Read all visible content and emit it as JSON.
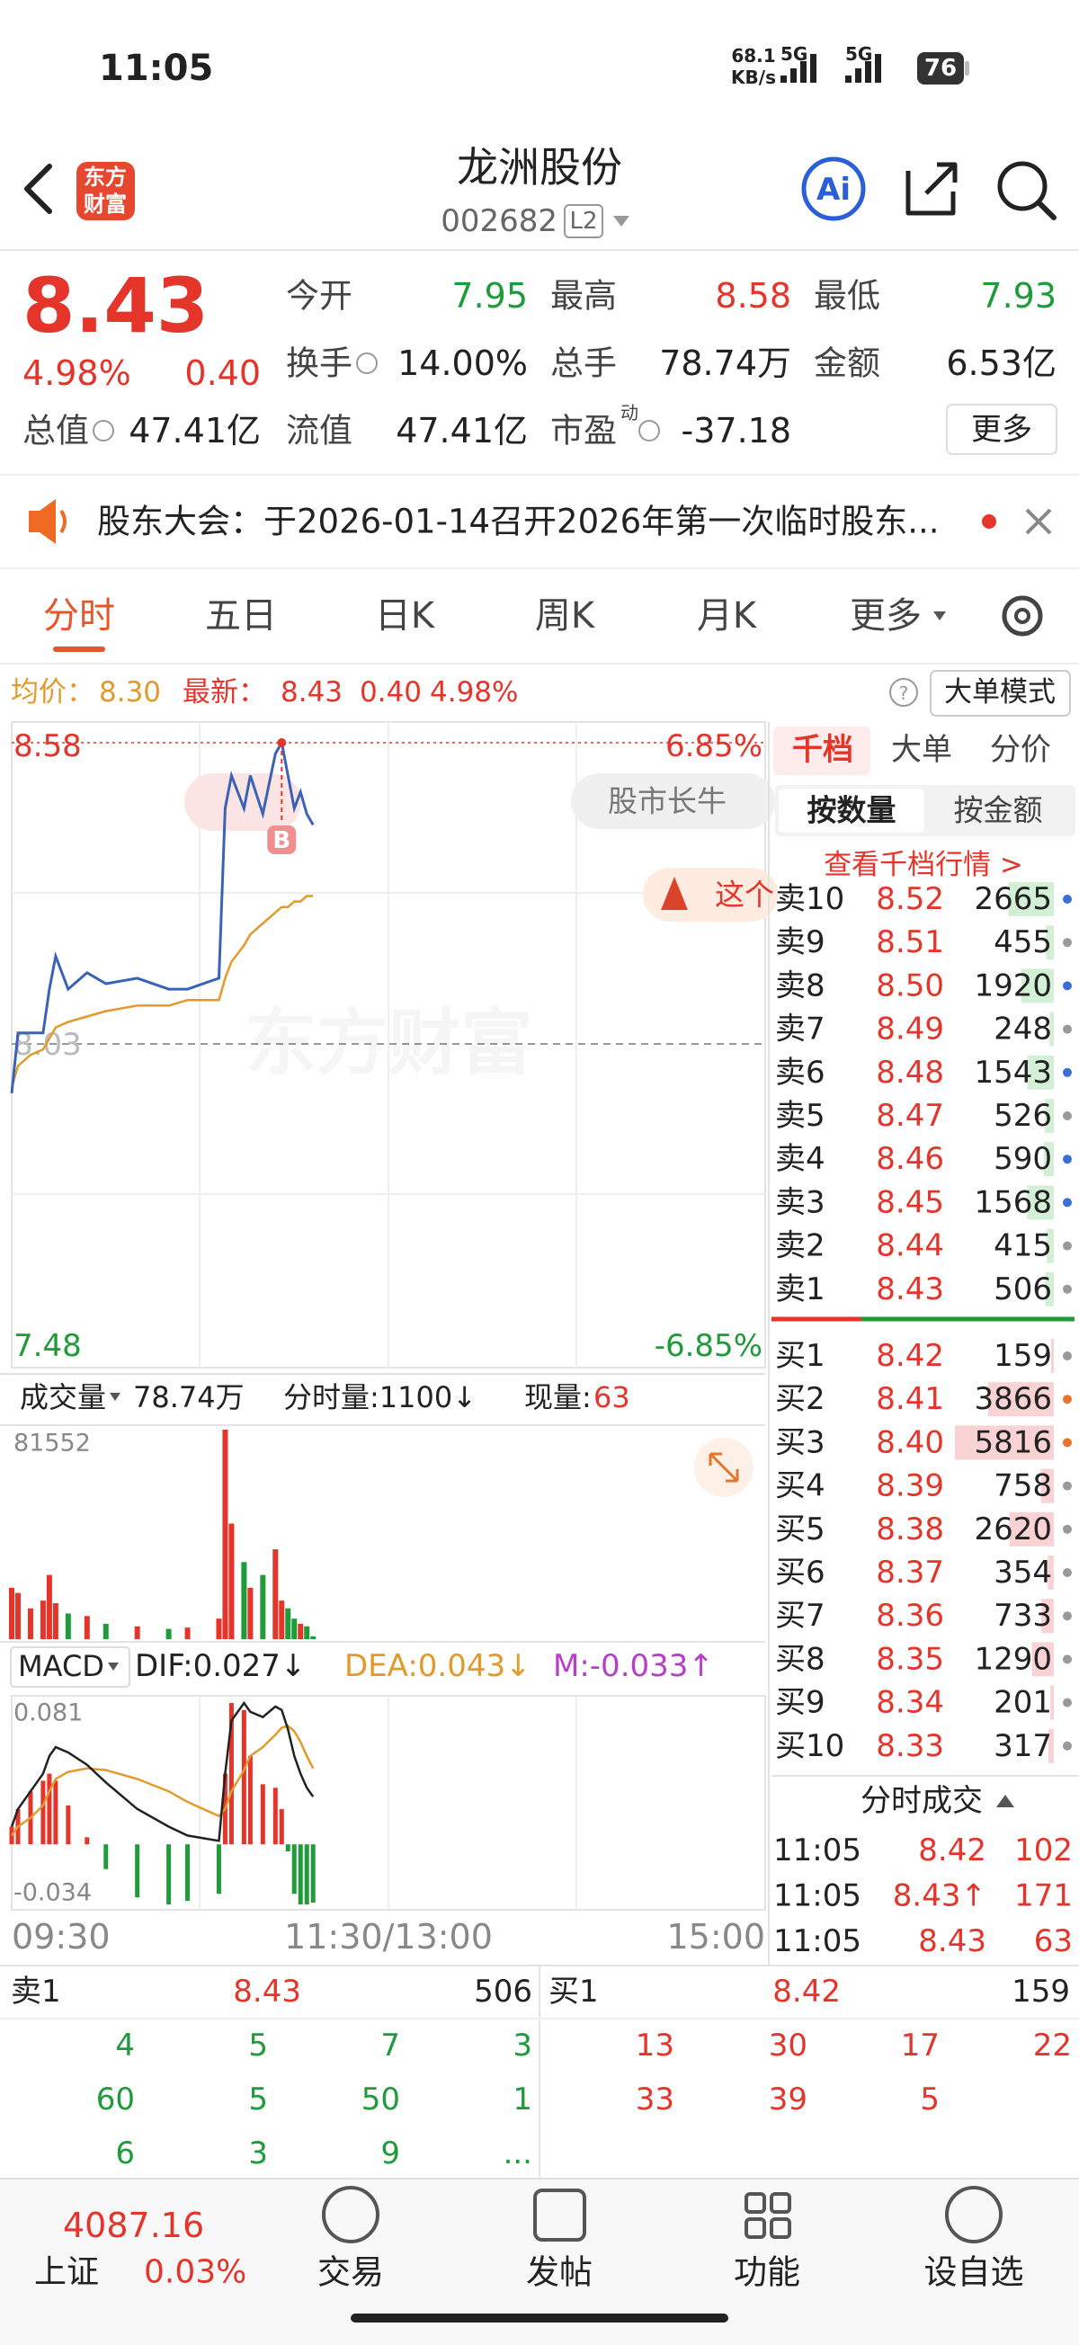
{
  "status_bar": {
    "time": "11:05",
    "network_speed": "68.1",
    "network_unit": "KB/s",
    "signal_1": "5G",
    "signal_2": "5G",
    "battery": "76"
  },
  "header": {
    "logo": [
      "东方",
      "财富"
    ],
    "title": "龙洲股份",
    "code": "002682",
    "level": "L2",
    "ai_button": "Ai"
  },
  "quote": {
    "price": "8.43",
    "change_pct": "4.98%",
    "change": "0.40",
    "fields": [
      [
        {
          "label": "今开",
          "value": "7.95",
          "color": "#1f9b3a"
        },
        {
          "label": "最高",
          "value": "8.58",
          "color": "#e5352b"
        },
        {
          "label": "最低",
          "value": "7.93",
          "color": "#1f9b3a"
        }
      ],
      [
        {
          "label": "换手",
          "value": "14.00%",
          "color": "#222222",
          "icon": true
        },
        {
          "label": "总手",
          "value": "78.74万",
          "color": "#222222"
        },
        {
          "label": "金额",
          "value": "6.53亿",
          "color": "#222222"
        }
      ],
      [
        {
          "label": "总值",
          "value": "47.41亿",
          "color": "#222222",
          "icon": true
        },
        {
          "label": "流值",
          "value": "47.41亿",
          "color": "#222222"
        },
        {
          "label": "市盈",
          "sup": "动",
          "value": "-37.18",
          "color": "#222222",
          "icon": true
        }
      ]
    ],
    "more": "更多"
  },
  "notice": {
    "text": "股东大会：于2026-01-14召开2026年第一次临时股东..."
  },
  "tabs": {
    "items": [
      "分时",
      "五日",
      "日K",
      "周K",
      "月K",
      "更多"
    ],
    "active": 0
  },
  "summary": {
    "avg_label": "均价：",
    "avg": "8.30",
    "last_label": "最新：",
    "last": "8.43",
    "change": "0.40",
    "change_pct": "4.98%",
    "mode_button": "大单模式"
  },
  "intraday": {
    "price_ylim": [
      7.48,
      8.58
    ],
    "price_labels": {
      "high": "8.58",
      "high_pct": "6.85%",
      "mid": "8.03",
      "low": "7.48",
      "low_pct": "-6.85%"
    },
    "watermark": "东方财富",
    "badge": "股市长牛",
    "promo": "这个",
    "marker": "B",
    "xlim": [
      0,
      240
    ],
    "x": [
      0,
      2,
      6,
      10,
      12,
      14,
      18,
      24,
      30,
      40,
      50,
      56,
      66,
      68,
      70,
      74,
      76,
      80,
      84,
      86,
      88,
      90,
      92,
      94,
      96
    ],
    "price": [
      7.94,
      8.05,
      8.05,
      8.05,
      8.13,
      8.19,
      8.13,
      8.16,
      8.14,
      8.15,
      8.13,
      8.13,
      8.15,
      8.46,
      8.52,
      8.46,
      8.52,
      8.45,
      8.56,
      8.58,
      8.52,
      8.46,
      8.49,
      8.45,
      8.43
    ],
    "avg": [
      7.95,
      7.99,
      8.01,
      8.02,
      8.04,
      8.06,
      8.07,
      8.08,
      8.09,
      8.1,
      8.1,
      8.11,
      8.11,
      8.15,
      8.18,
      8.21,
      8.23,
      8.25,
      8.27,
      8.28,
      8.28,
      8.29,
      8.29,
      8.3,
      8.3
    ],
    "time_labels": [
      "09:30",
      "11:30/13:00",
      "15:00"
    ],
    "volume_label": "成交量",
    "volume_total": "78.74万",
    "minute_volume": "分时量:1100↓",
    "current_volume_label": "现量:",
    "current_volume": "63",
    "volume_max": "81552",
    "volume_ylim": [
      0,
      81552
    ],
    "volume": [
      20000,
      18000,
      12000,
      15000,
      25000,
      14000,
      10000,
      9000,
      6000,
      5000,
      4000,
      4500,
      8000,
      81552,
      45000,
      30000,
      20000,
      25000,
      35000,
      15000,
      12000,
      8000,
      6000,
      5000,
      1100
    ],
    "macd_label": "MACD",
    "dif_label": "DIF:0.027↓",
    "dea_label": "DEA:0.043↓",
    "m_label": "M:-0.033↑",
    "macd_top": "0.081",
    "macd_bottom": "-0.034",
    "macd_ylim": [
      -0.034,
      0.081
    ],
    "dif": [
      0.01,
      0.02,
      0.03,
      0.04,
      0.05,
      0.055,
      0.052,
      0.045,
      0.035,
      0.02,
      0.01,
      0.005,
      0.002,
      0.04,
      0.07,
      0.08,
      0.075,
      0.072,
      0.078,
      0.076,
      0.065,
      0.05,
      0.04,
      0.032,
      0.027
    ],
    "dea": [
      0.005,
      0.01,
      0.015,
      0.022,
      0.03,
      0.037,
      0.041,
      0.043,
      0.042,
      0.037,
      0.03,
      0.024,
      0.016,
      0.02,
      0.03,
      0.042,
      0.05,
      0.055,
      0.062,
      0.066,
      0.067,
      0.064,
      0.058,
      0.05,
      0.043
    ],
    "m": [
      0.01,
      0.02,
      0.03,
      0.036,
      0.04,
      0.036,
      0.022,
      0.004,
      -0.014,
      -0.03,
      -0.034,
      -0.032,
      -0.028,
      0.04,
      0.08,
      0.076,
      0.05,
      0.034,
      0.032,
      0.02,
      -0.004,
      -0.028,
      -0.034,
      -0.034,
      -0.033
    ]
  },
  "order_book": {
    "tabs": [
      "千档",
      "大单",
      "分价"
    ],
    "sub_tabs": [
      "按数量",
      "按金额"
    ],
    "link": "查看千档行情 >",
    "asks": [
      {
        "label": "卖10",
        "price": "8.52",
        "volume": 2665,
        "dot": "#3b6fd6"
      },
      {
        "label": "卖9",
        "price": "8.51",
        "volume": 455,
        "dot": "#999999"
      },
      {
        "label": "卖8",
        "price": "8.50",
        "volume": 1920,
        "dot": "#3b6fd6"
      },
      {
        "label": "卖7",
        "price": "8.49",
        "volume": 248,
        "dot": "#999999"
      },
      {
        "label": "卖6",
        "price": "8.48",
        "volume": 1543,
        "dot": "#3b6fd6"
      },
      {
        "label": "卖5",
        "price": "8.47",
        "volume": 526,
        "dot": "#999999"
      },
      {
        "label": "卖4",
        "price": "8.46",
        "volume": 590,
        "dot": "#3b6fd6"
      },
      {
        "label": "卖3",
        "price": "8.45",
        "volume": 1568,
        "dot": "#3b6fd6"
      },
      {
        "label": "卖2",
        "price": "8.44",
        "volume": 415,
        "dot": "#999999"
      },
      {
        "label": "卖1",
        "price": "8.43",
        "volume": 506,
        "dot": "#999999"
      }
    ],
    "bids": [
      {
        "label": "买1",
        "price": "8.42",
        "volume": 159,
        "dot": "#999999"
      },
      {
        "label": "买2",
        "price": "8.41",
        "volume": 3866,
        "dot": "#e8742c"
      },
      {
        "label": "买3",
        "price": "8.40",
        "volume": 5816,
        "dot": "#e8742c"
      },
      {
        "label": "买4",
        "price": "8.39",
        "volume": 758,
        "dot": "#999999"
      },
      {
        "label": "买5",
        "price": "8.38",
        "volume": 2620,
        "dot": "#999999"
      },
      {
        "label": "买6",
        "price": "8.37",
        "volume": 354,
        "dot": "#999999"
      },
      {
        "label": "买7",
        "price": "8.36",
        "volume": 733,
        "dot": "#999999"
      },
      {
        "label": "买8",
        "price": "8.35",
        "volume": 1290,
        "dot": "#999999"
      },
      {
        "label": "买9",
        "price": "8.34",
        "volume": 201,
        "dot": "#999999"
      },
      {
        "label": "买10",
        "price": "8.33",
        "volume": 317,
        "dot": "#999999"
      }
    ],
    "trades_title": "分时成交",
    "trades": [
      {
        "time": "11:05",
        "price": "8.42",
        "volume": "102"
      },
      {
        "time": "11:05",
        "price": "8.43↑",
        "volume": "171"
      },
      {
        "time": "11:05",
        "price": "8.43",
        "volume": "63"
      }
    ]
  },
  "bottom_quote": {
    "ask": {
      "label": "卖1",
      "price": "8.43",
      "volume": "506",
      "orders": [
        [
          "4",
          "5",
          "7",
          "3"
        ],
        [
          "60",
          "5",
          "50",
          "1"
        ],
        [
          "6",
          "3",
          "9",
          "..."
        ]
      ]
    },
    "bid": {
      "label": "买1",
      "price": "8.42",
      "volume": "159",
      "orders": [
        [
          "13",
          "30",
          "17",
          "22"
        ],
        [
          "33",
          "39",
          "5"
        ]
      ]
    }
  },
  "nav": {
    "index_value": "4087.16",
    "index_name": "上证",
    "index_change": "0.03%",
    "items": [
      "交易",
      "发帖",
      "功能",
      "设自选"
    ]
  }
}
